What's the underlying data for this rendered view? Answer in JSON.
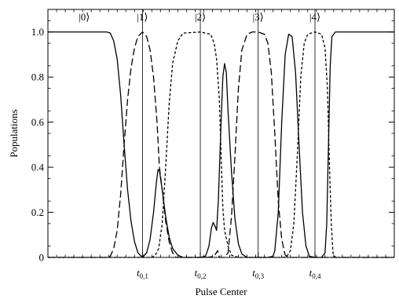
{
  "chart_data": {
    "type": "line",
    "xlabel": "Pulse Center",
    "ylabel": "Populations",
    "xlim": [
      0,
      1
    ],
    "ylim": [
      0,
      1.1
    ],
    "y_ticks": [
      0,
      0.2,
      0.4,
      0.6,
      0.8,
      1.0
    ],
    "y_tick_labels": [
      "0",
      "0.2",
      "0.4",
      "0.6",
      "0.8",
      "1.0"
    ],
    "x_ticks": [
      0.273,
      0.44,
      0.607,
      0.771
    ],
    "x_tick_labels": [
      {
        "main": "t",
        "sub": "0,1"
      },
      {
        "main": "t",
        "sub": "0,2"
      },
      {
        "main": "t",
        "sub": "0,3"
      },
      {
        "main": "t",
        "sub": "0,4"
      }
    ],
    "vertical_lines_x": [
      0.273,
      0.44,
      0.607,
      0.771
    ],
    "state_labels": [
      {
        "text": "|0⟩",
        "x": 0.105
      },
      {
        "text": "|1⟩",
        "x": 0.273
      },
      {
        "text": "|2⟩",
        "x": 0.44
      },
      {
        "text": "|3⟩",
        "x": 0.607
      },
      {
        "text": "|4⟩",
        "x": 0.771
      }
    ],
    "series": [
      {
        "style": "solid",
        "points": [
          [
            0.0,
            1.0
          ],
          [
            0.17,
            1.0
          ],
          [
            0.18,
            0.995
          ],
          [
            0.19,
            0.96
          ],
          [
            0.2,
            0.88
          ],
          [
            0.21,
            0.72
          ],
          [
            0.22,
            0.5
          ],
          [
            0.23,
            0.3
          ],
          [
            0.24,
            0.16
          ],
          [
            0.25,
            0.07
          ],
          [
            0.26,
            0.02
          ],
          [
            0.273,
            0.0
          ],
          [
            0.285,
            0.02
          ],
          [
            0.295,
            0.08
          ],
          [
            0.305,
            0.2
          ],
          [
            0.313,
            0.33
          ],
          [
            0.318,
            0.39
          ],
          [
            0.322,
            0.385
          ],
          [
            0.33,
            0.3
          ],
          [
            0.34,
            0.18
          ],
          [
            0.35,
            0.09
          ],
          [
            0.36,
            0.04
          ],
          [
            0.375,
            0.01
          ],
          [
            0.39,
            0.0
          ],
          [
            0.44,
            0.0
          ],
          [
            0.455,
            0.005
          ],
          [
            0.465,
            0.05
          ],
          [
            0.472,
            0.13
          ],
          [
            0.477,
            0.155
          ],
          [
            0.482,
            0.14
          ],
          [
            0.487,
            0.12
          ],
          [
            0.492,
            0.25
          ],
          [
            0.5,
            0.6
          ],
          [
            0.505,
            0.8
          ],
          [
            0.51,
            0.86
          ],
          [
            0.515,
            0.82
          ],
          [
            0.52,
            0.65
          ],
          [
            0.53,
            0.38
          ],
          [
            0.54,
            0.17
          ],
          [
            0.55,
            0.06
          ],
          [
            0.56,
            0.015
          ],
          [
            0.575,
            0.0
          ],
          [
            0.607,
            0.0
          ],
          [
            0.635,
            0.0
          ],
          [
            0.65,
            0.005
          ],
          [
            0.655,
            0.03
          ],
          [
            0.665,
            0.2
          ],
          [
            0.675,
            0.6
          ],
          [
            0.685,
            0.9
          ],
          [
            0.695,
            0.99
          ],
          [
            0.705,
            0.98
          ],
          [
            0.715,
            0.82
          ],
          [
            0.725,
            0.5
          ],
          [
            0.735,
            0.2
          ],
          [
            0.745,
            0.05
          ],
          [
            0.755,
            0.005
          ],
          [
            0.771,
            0.0
          ],
          [
            0.79,
            0.0
          ],
          [
            0.8,
            0.02
          ],
          [
            0.805,
            0.15
          ],
          [
            0.81,
            0.5
          ],
          [
            0.815,
            0.85
          ],
          [
            0.82,
            0.98
          ],
          [
            0.83,
            1.0
          ],
          [
            1.0,
            1.0
          ]
        ]
      },
      {
        "style": "long-dash",
        "points": [
          [
            0.0,
            0.0
          ],
          [
            0.17,
            0.0
          ],
          [
            0.18,
            0.005
          ],
          [
            0.19,
            0.04
          ],
          [
            0.2,
            0.12
          ],
          [
            0.21,
            0.28
          ],
          [
            0.22,
            0.5
          ],
          [
            0.23,
            0.7
          ],
          [
            0.24,
            0.84
          ],
          [
            0.25,
            0.93
          ],
          [
            0.26,
            0.98
          ],
          [
            0.273,
            1.0
          ],
          [
            0.285,
            0.98
          ],
          [
            0.295,
            0.92
          ],
          [
            0.305,
            0.8
          ],
          [
            0.315,
            0.6
          ],
          [
            0.322,
            0.4
          ],
          [
            0.33,
            0.3
          ],
          [
            0.34,
            0.16
          ],
          [
            0.35,
            0.07
          ],
          [
            0.36,
            0.02
          ],
          [
            0.37,
            0.0
          ],
          [
            0.44,
            0.0
          ],
          [
            0.46,
            0.0
          ],
          [
            0.48,
            0.005
          ],
          [
            0.49,
            0.03
          ],
          [
            0.495,
            0.0
          ],
          [
            0.51,
            0.0
          ],
          [
            0.52,
            0.02
          ],
          [
            0.53,
            0.18
          ],
          [
            0.54,
            0.45
          ],
          [
            0.55,
            0.75
          ],
          [
            0.56,
            0.92
          ],
          [
            0.575,
            0.99
          ],
          [
            0.59,
            1.0
          ],
          [
            0.607,
            1.0
          ],
          [
            0.625,
            0.99
          ],
          [
            0.635,
            0.95
          ],
          [
            0.645,
            0.82
          ],
          [
            0.655,
            0.55
          ],
          [
            0.665,
            0.25
          ],
          [
            0.675,
            0.08
          ],
          [
            0.685,
            0.01
          ],
          [
            0.695,
            0.0
          ],
          [
            1.0,
            0.0
          ]
        ]
      },
      {
        "style": "short-dash",
        "points": [
          [
            0.0,
            0.0
          ],
          [
            0.3,
            0.0
          ],
          [
            0.31,
            0.01
          ],
          [
            0.32,
            0.04
          ],
          [
            0.33,
            0.15
          ],
          [
            0.34,
            0.4
          ],
          [
            0.35,
            0.68
          ],
          [
            0.36,
            0.86
          ],
          [
            0.375,
            0.96
          ],
          [
            0.39,
            0.995
          ],
          [
            0.44,
            1.0
          ],
          [
            0.47,
            0.99
          ],
          [
            0.48,
            0.95
          ],
          [
            0.487,
            0.88
          ],
          [
            0.495,
            0.7
          ],
          [
            0.5,
            0.45
          ],
          [
            0.505,
            0.22
          ],
          [
            0.51,
            0.12
          ],
          [
            0.52,
            0.05
          ],
          [
            0.53,
            0.01
          ],
          [
            0.55,
            0.0
          ],
          [
            0.68,
            0.0
          ],
          [
            0.69,
            0.005
          ],
          [
            0.7,
            0.03
          ],
          [
            0.71,
            0.15
          ],
          [
            0.72,
            0.45
          ],
          [
            0.73,
            0.8
          ],
          [
            0.74,
            0.95
          ],
          [
            0.75,
            0.99
          ],
          [
            0.771,
            1.0
          ],
          [
            0.79,
            0.99
          ],
          [
            0.8,
            0.93
          ],
          [
            0.807,
            0.75
          ],
          [
            0.812,
            0.45
          ],
          [
            0.818,
            0.15
          ],
          [
            0.823,
            0.02
          ],
          [
            0.83,
            0.0
          ],
          [
            1.0,
            0.0
          ]
        ]
      }
    ]
  }
}
